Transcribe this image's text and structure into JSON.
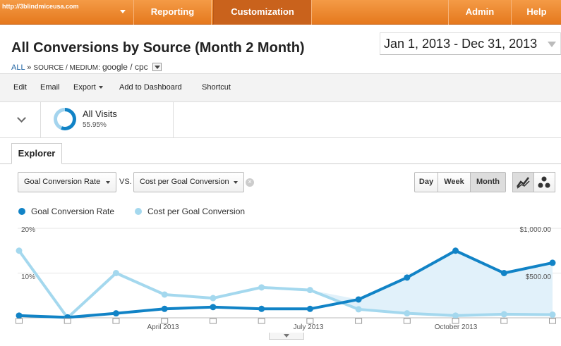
{
  "nav": {
    "account": "http://3blindmiceusa.com",
    "tabs": [
      "Reporting",
      "Customization",
      "Admin",
      "Help"
    ]
  },
  "header": {
    "title": "All Conversions by Source (Month 2 Month)",
    "date_range": "Jan 1, 2013 - Dec 31, 2013",
    "breadcrumb": {
      "root": "ALL",
      "separator": "»",
      "dimension": "SOURCE / MEDIUM:",
      "value": "google / cpc"
    }
  },
  "toolbar": {
    "edit": "Edit",
    "email": "Email",
    "export": "Export",
    "add_to_dashboard": "Add to Dashboard",
    "shortcut": "Shortcut"
  },
  "segment": {
    "name": "All Visits",
    "percent": "55.95%",
    "fraction": 0.5595
  },
  "explorer_tab": "Explorer",
  "controls": {
    "metric_primary": "Goal Conversion Rate",
    "vs": "VS.",
    "metric_secondary": "Cost per Goal Conversion",
    "periods": [
      "Day",
      "Week",
      "Month"
    ],
    "selected_period": "Month"
  },
  "colors": {
    "primary": "#1183c6",
    "secondary": "#a4d8ee",
    "area": "#e1f1fa",
    "nav": "#ef8a30"
  },
  "chart_data": {
    "type": "line",
    "x": [
      "2013-01",
      "2013-02",
      "2013-03",
      "2013-04",
      "2013-05",
      "2013-06",
      "2013-07",
      "2013-08",
      "2013-09",
      "2013-10",
      "2013-11",
      "2013-12"
    ],
    "x_tick_labels": [
      "April 2013",
      "July 2013",
      "October 2013"
    ],
    "series": [
      {
        "name": "Goal Conversion Rate",
        "axis": "left",
        "values": [
          0.5,
          0.1,
          1.0,
          2.0,
          2.4,
          2.0,
          2.0,
          4.1,
          9.0,
          15.0,
          10.0,
          12.3
        ]
      },
      {
        "name": "Cost per Goal Conversion",
        "axis": "right",
        "values": [
          750,
          0,
          500,
          260,
          220,
          340,
          310,
          95,
          50,
          25,
          40,
          35
        ]
      }
    ],
    "left_axis": {
      "ticks": [
        "20%",
        "10%"
      ],
      "range": [
        0,
        20
      ]
    },
    "right_axis": {
      "ticks": [
        "$1,000.00",
        "$500.00"
      ],
      "range": [
        0,
        1000
      ]
    },
    "grid": true,
    "legend": "top-left"
  }
}
